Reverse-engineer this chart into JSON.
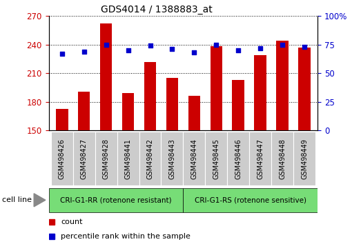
{
  "title": "GDS4014 / 1388883_at",
  "categories": [
    "GSM498426",
    "GSM498427",
    "GSM498428",
    "GSM498441",
    "GSM498442",
    "GSM498443",
    "GSM498444",
    "GSM498445",
    "GSM498446",
    "GSM498447",
    "GSM498448",
    "GSM498449"
  ],
  "counts": [
    173,
    191,
    262,
    189,
    222,
    205,
    186,
    238,
    203,
    229,
    244,
    237
  ],
  "percentile_ranks": [
    67,
    69,
    75,
    70,
    74,
    71,
    68,
    75,
    70,
    72,
    75,
    73
  ],
  "ylim_left": [
    150,
    270
  ],
  "ylim_right": [
    0,
    100
  ],
  "yticks_left": [
    150,
    180,
    210,
    240,
    270
  ],
  "yticks_right": [
    0,
    25,
    50,
    75,
    100
  ],
  "bar_color": "#cc0000",
  "dot_color": "#0000cc",
  "group1_label": "CRI-G1-RR (rotenone resistant)",
  "group2_label": "CRI-G1-RS (rotenone sensitive)",
  "group1_count": 6,
  "cell_line_label": "cell line",
  "legend_count": "count",
  "legend_percentile": "percentile rank within the sample",
  "group_bg_color": "#77dd77",
  "tick_area_bg": "#cccccc",
  "plot_bg": "#ffffff",
  "bar_width": 0.55
}
